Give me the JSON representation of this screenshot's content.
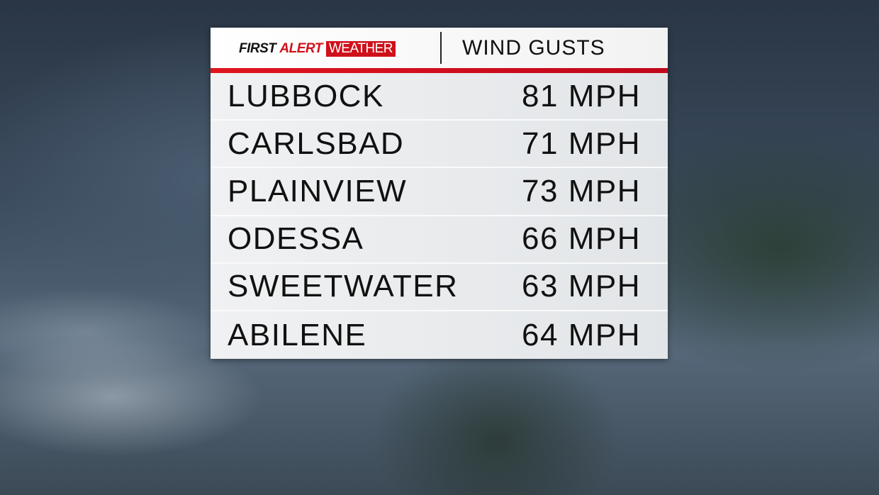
{
  "header": {
    "logo": {
      "first": "FIRST",
      "alert": "ALERT",
      "weather": "WEATHER"
    },
    "title": "WIND GUSTS"
  },
  "colors": {
    "accent": "#d0101a"
  },
  "rows": [
    {
      "city": "LUBBOCK",
      "value": "81 MPH"
    },
    {
      "city": "CARLSBAD",
      "value": "71 MPH"
    },
    {
      "city": "PLAINVIEW",
      "value": "73 MPH"
    },
    {
      "city": "ODESSA",
      "value": "66 MPH"
    },
    {
      "city": "SWEETWATER",
      "value": "63 MPH"
    },
    {
      "city": "ABILENE",
      "value": "64 MPH"
    }
  ]
}
